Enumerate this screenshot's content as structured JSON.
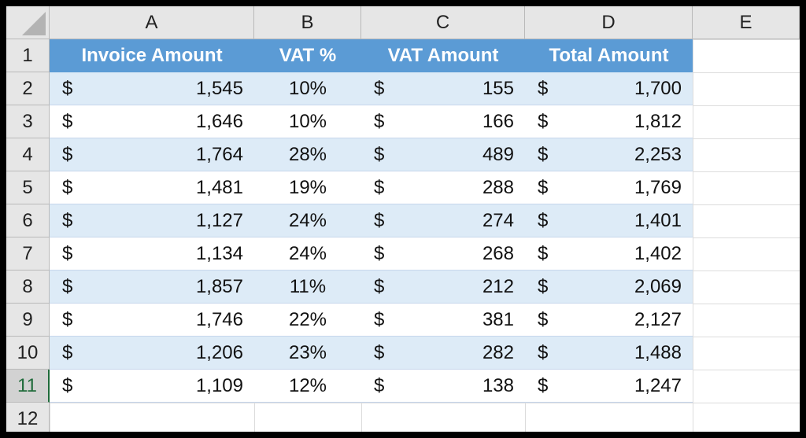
{
  "columns": [
    "A",
    "B",
    "C",
    "D",
    "E"
  ],
  "row_numbers": [
    "1",
    "2",
    "3",
    "4",
    "5",
    "6",
    "7",
    "8",
    "9",
    "10",
    "11",
    "12"
  ],
  "active_row": "11",
  "headers": [
    "Invoice Amount",
    "VAT %",
    "VAT Amount",
    "Total Amount"
  ],
  "currency_symbol": "$",
  "colors": {
    "header_fill": "#5b9bd5",
    "band_fill": "#ddebf7",
    "row_header_fill": "#e6e6e6",
    "active_row_accent": "#1f6b3a"
  },
  "rows": [
    {
      "invoice": "1,545",
      "vat_pct": "10%",
      "vat_amt": "155",
      "total": "1,700"
    },
    {
      "invoice": "1,646",
      "vat_pct": "10%",
      "vat_amt": "166",
      "total": "1,812"
    },
    {
      "invoice": "1,764",
      "vat_pct": "28%",
      "vat_amt": "489",
      "total": "2,253"
    },
    {
      "invoice": "1,481",
      "vat_pct": "19%",
      "vat_amt": "288",
      "total": "1,769"
    },
    {
      "invoice": "1,127",
      "vat_pct": "24%",
      "vat_amt": "274",
      "total": "1,401"
    },
    {
      "invoice": "1,134",
      "vat_pct": "24%",
      "vat_amt": "268",
      "total": "1,402"
    },
    {
      "invoice": "1,857",
      "vat_pct": "11%",
      "vat_amt": "212",
      "total": "2,069"
    },
    {
      "invoice": "1,746",
      "vat_pct": "22%",
      "vat_amt": "381",
      "total": "2,127"
    },
    {
      "invoice": "1,206",
      "vat_pct": "23%",
      "vat_amt": "282",
      "total": "1,488"
    },
    {
      "invoice": "1,109",
      "vat_pct": "12%",
      "vat_amt": "138",
      "total": "1,247"
    }
  ]
}
